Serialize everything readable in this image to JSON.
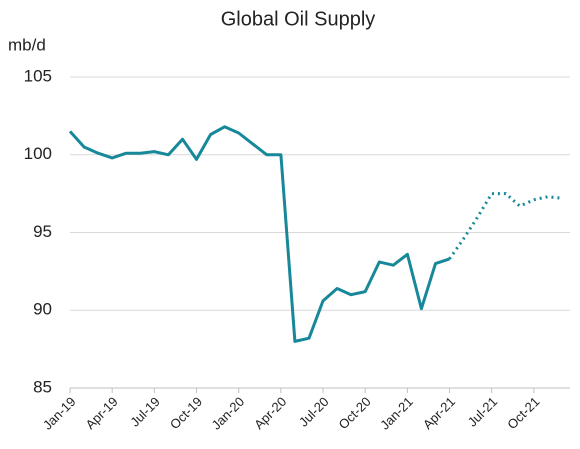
{
  "chart_data": {
    "type": "line",
    "title": "Global Oil Supply",
    "y_label": "mb/d",
    "categories": [
      "Jan-19",
      null,
      null,
      "Apr-19",
      null,
      null,
      "Jul-19",
      null,
      null,
      "Oct-19",
      null,
      null,
      "Jan-20",
      null,
      null,
      "Apr-20",
      null,
      null,
      "Jul-20",
      null,
      null,
      "Oct-20",
      null,
      null,
      "Jan-21",
      null,
      null,
      "Apr-21",
      null,
      null,
      "Jul-21",
      null,
      null,
      "Oct-21",
      null,
      null
    ],
    "series": [
      {
        "color": "#17889a",
        "dash": "solid",
        "values": [
          101.5,
          100.5,
          100.1,
          99.8,
          100.1,
          100.1,
          100.2,
          100.0,
          101.0,
          99.7,
          101.3,
          101.8,
          101.4,
          100.7,
          100.0,
          100.0,
          88.0,
          88.2,
          90.6,
          91.4,
          91.0,
          91.2,
          93.1,
          92.9,
          93.6,
          90.1,
          93.0,
          93.3,
          null,
          null,
          null,
          null,
          null,
          null,
          null,
          null
        ]
      },
      {
        "color": "#17889a",
        "dash": "dotted",
        "values": [
          null,
          null,
          null,
          null,
          null,
          null,
          null,
          null,
          null,
          null,
          null,
          null,
          null,
          null,
          null,
          null,
          null,
          null,
          null,
          null,
          null,
          null,
          null,
          null,
          null,
          null,
          null,
          93.3,
          94.6,
          96.0,
          97.5,
          97.5,
          96.7,
          97.1,
          97.3,
          97.2
        ]
      }
    ],
    "ylim": [
      85,
      105
    ],
    "yticks": [
      85,
      90,
      95,
      100,
      105
    ],
    "grid": true
  }
}
